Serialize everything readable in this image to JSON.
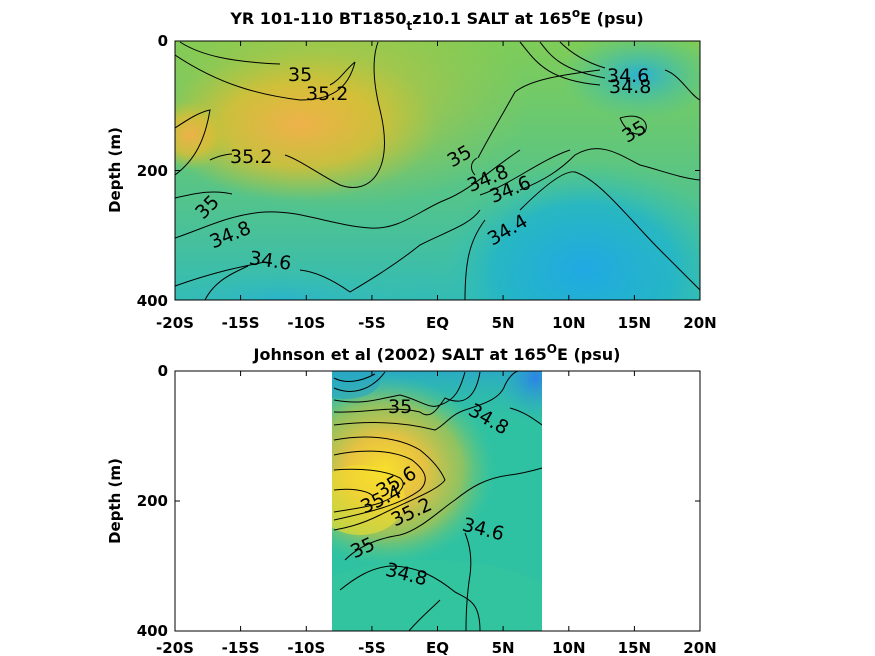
{
  "chart_data": [
    {
      "type": "contour",
      "title_prefix": "YR 101-110 BT1850",
      "title_sub": "t",
      "title_mid": "z10.1 SALT at 165",
      "title_sup": "o",
      "title_suffix": "E (psu)",
      "ylabel": "Depth (m)",
      "xlim": [
        -20,
        20
      ],
      "ylim": [
        0,
        400
      ],
      "y_reversed": true,
      "xticks": [
        "-20S",
        "-15S",
        "-10S",
        "-5S",
        "EQ",
        "5N",
        "10N",
        "15N",
        "20N"
      ],
      "yticks": [
        "0",
        "200",
        "400"
      ],
      "contour_labels": [
        "35",
        "35.2",
        "34.6",
        "34.8",
        "35",
        "35.2",
        "35",
        "34.8",
        "34.6",
        "35",
        "34.8",
        "34.4",
        "34.6"
      ],
      "colors": {
        "high": "#e8c43a",
        "mid": "#7fcc5a",
        "low": "#29a7dc"
      }
    },
    {
      "type": "contour",
      "title_prefix": "Johnson et al (2002) SALT at 165",
      "title_sup": "O",
      "title_suffix": "E (psu)",
      "ylabel": "Depth (m)",
      "xlim": [
        -20,
        20
      ],
      "ylim": [
        0,
        400
      ],
      "y_reversed": true,
      "data_x_range": [
        -8,
        8
      ],
      "xticks": [
        "-20S",
        "-15S",
        "-10S",
        "-5S",
        "EQ",
        "5N",
        "10N",
        "15N",
        "20N"
      ],
      "yticks": [
        "0",
        "200",
        "400"
      ],
      "contour_labels": [
        "35",
        "34.8",
        "35.6",
        "35.4",
        "35.2",
        "35",
        "34.6",
        "34.8"
      ],
      "colors": {
        "high": "#f4d630",
        "mid": "#2fbfa0",
        "low": "#2a8fe0"
      }
    }
  ]
}
